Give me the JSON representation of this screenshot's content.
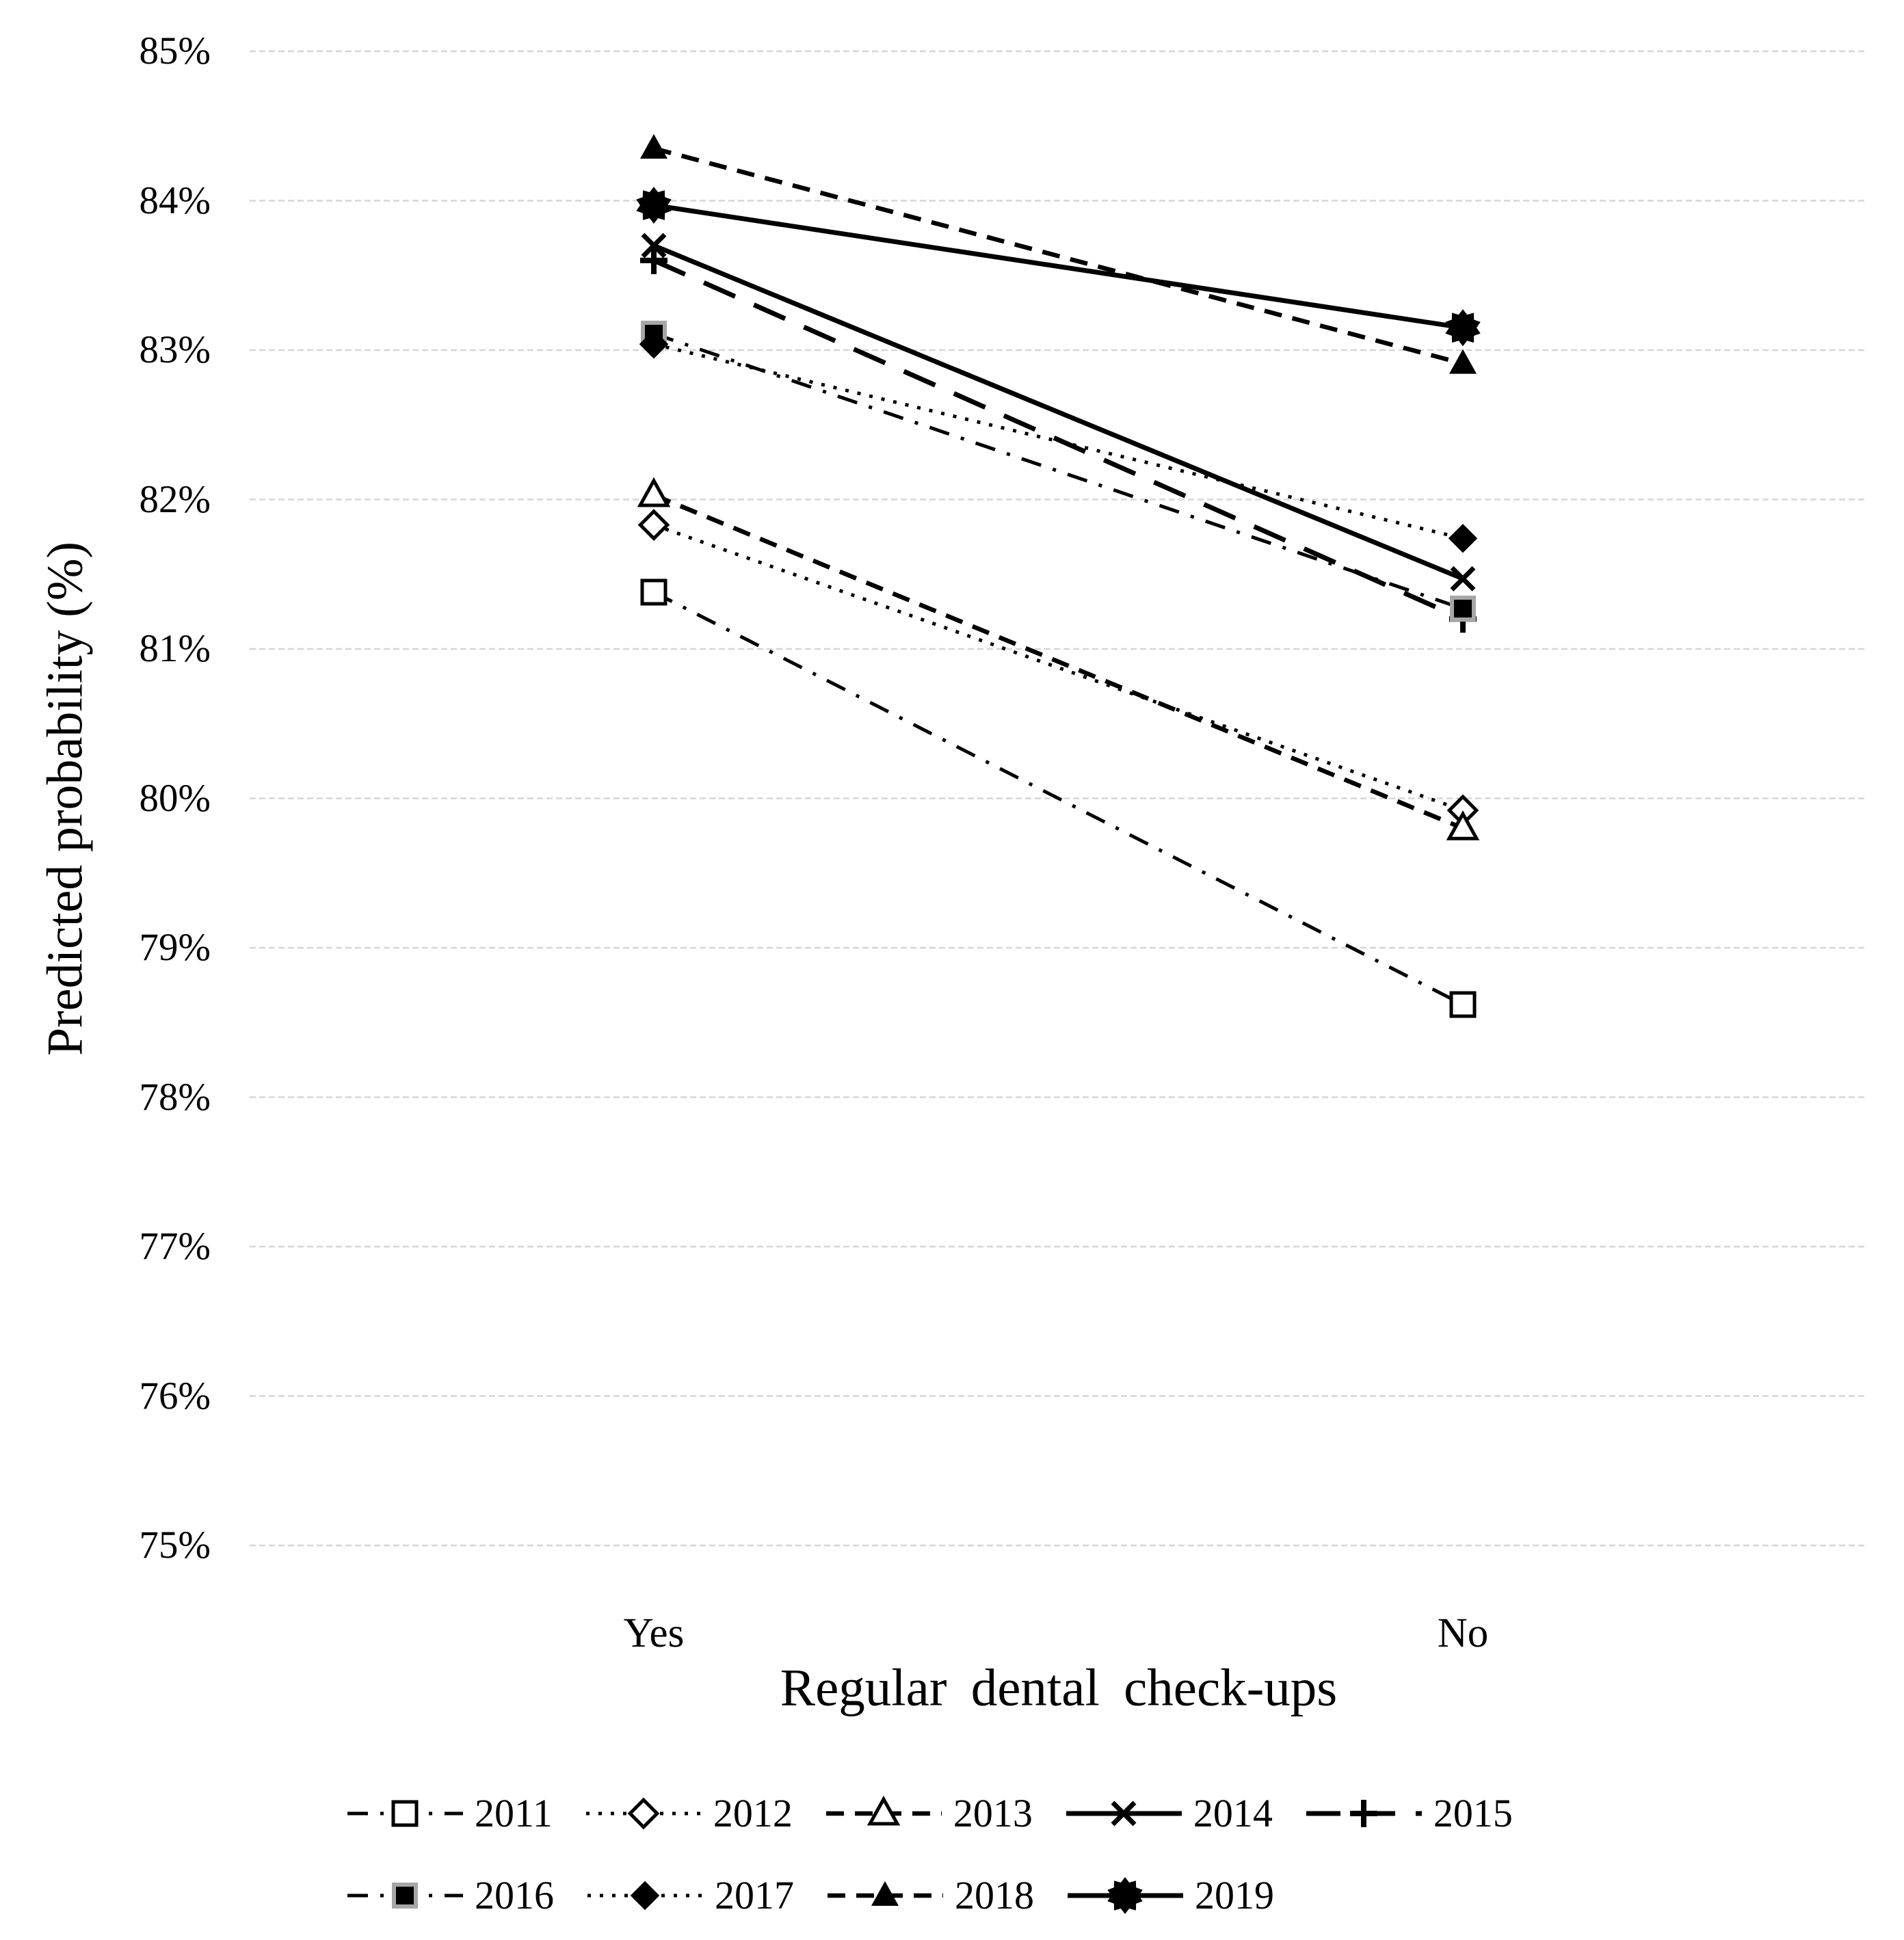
{
  "chart_data": {
    "type": "line",
    "title": "",
    "xlabel": "Regular dental check-ups",
    "ylabel": "Predicted probability (%)",
    "categories": [
      "Yes",
      "No"
    ],
    "y_ticks": [
      "85%",
      "84%",
      "83%",
      "82%",
      "81%",
      "80%",
      "79%",
      "78%",
      "77%",
      "76%",
      "75%"
    ],
    "ylim": [
      75,
      85
    ],
    "grid": true,
    "legend_position": "bottom",
    "legend_rows": [
      [
        "2011",
        "2012",
        "2013",
        "2014",
        "2015"
      ],
      [
        "2016",
        "2017",
        "2018",
        "2019"
      ]
    ],
    "series": [
      {
        "name": "2011",
        "marker": "open-square",
        "line": "dashdot",
        "values": [
          81.38,
          78.62
        ]
      },
      {
        "name": "2012",
        "marker": "open-diamond",
        "line": "dotted",
        "values": [
          81.83,
          79.92
        ]
      },
      {
        "name": "2013",
        "marker": "open-triangle",
        "line": "dashed",
        "values": [
          82.03,
          79.8
        ]
      },
      {
        "name": "2014",
        "marker": "x",
        "line": "solid",
        "values": [
          83.7,
          81.47
        ]
      },
      {
        "name": "2015",
        "marker": "plus",
        "line": "longdash",
        "values": [
          83.6,
          81.2
        ]
      },
      {
        "name": "2016",
        "marker": "filled-square",
        "line": "dashdot",
        "values": [
          83.11,
          81.27
        ]
      },
      {
        "name": "2017",
        "marker": "filled-diamond",
        "line": "dotted",
        "values": [
          83.04,
          81.74
        ]
      },
      {
        "name": "2018",
        "marker": "filled-triangle",
        "line": "dashed",
        "values": [
          84.35,
          82.91
        ]
      },
      {
        "name": "2019",
        "marker": "starburst",
        "line": "solid",
        "values": [
          83.97,
          83.15
        ]
      }
    ],
    "colors": {
      "series_color": "#000000",
      "gridline_color": "#d6d6d6",
      "marker_fill_open": "#ffffff",
      "filled_square_halo": "#a6a6a6"
    }
  }
}
